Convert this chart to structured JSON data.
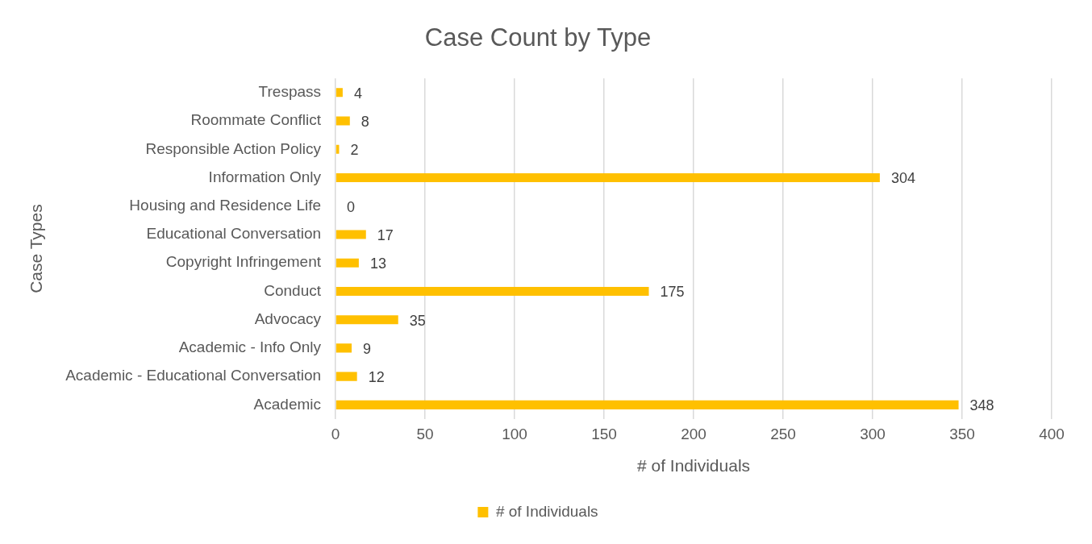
{
  "chart_data": {
    "type": "bar",
    "orientation": "horizontal",
    "title": "Case Count by Type",
    "xlabel": "# of Individuals",
    "ylabel": "Case Types",
    "categories": [
      "Trespass",
      "Roommate Conflict",
      "Responsible Action Policy",
      "Information Only",
      "Housing and Residence Life",
      "Educational Conversation",
      "Copyright Infringement",
      "Conduct",
      "Advocacy",
      "Academic - Info Only",
      "Academic - Educational Conversation",
      "Academic"
    ],
    "series": [
      {
        "name": "# of Individuals",
        "color": "#ffc000",
        "values": [
          4,
          8,
          2,
          304,
          0,
          17,
          13,
          175,
          35,
          9,
          12,
          348
        ]
      }
    ],
    "xlim": [
      0,
      400
    ],
    "xticks": [
      0,
      50,
      100,
      150,
      200,
      250,
      300,
      350,
      400
    ],
    "grid": "x",
    "legend": "bottom",
    "data_labels": true
  }
}
